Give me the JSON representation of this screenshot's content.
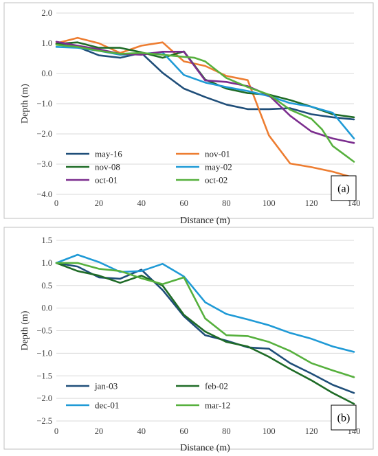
{
  "chart_data": [
    {
      "type": "line",
      "panel_label": "(a)",
      "xlabel": "Distance (m)",
      "ylabel": "Depth (m)",
      "xlim": [
        0,
        140
      ],
      "ylim": [
        -4.0,
        2.0
      ],
      "xticks": [
        0,
        20,
        40,
        60,
        80,
        100,
        120,
        140
      ],
      "yticks": [
        2.0,
        1.0,
        0.0,
        -1.0,
        -2.0,
        -3.0,
        -4.0
      ],
      "ytick_labels": [
        "2.0",
        "1.0",
        "0.0",
        "−1.0",
        "−2.0",
        "−3.0",
        "−4.0"
      ],
      "grid": "horizontal",
      "legend_placement": "bottom-left",
      "series": [
        {
          "name": "may-16",
          "color": "#1f4e79",
          "x": [
            0,
            10,
            20,
            30,
            40,
            50,
            60,
            70,
            80,
            90,
            100,
            110,
            120,
            130,
            140
          ],
          "y": [
            0.98,
            0.88,
            0.6,
            0.52,
            0.68,
            0.02,
            -0.5,
            -0.78,
            -1.03,
            -1.18,
            -1.18,
            -1.15,
            -1.35,
            -1.45,
            -1.52
          ]
        },
        {
          "name": "nov-01",
          "color": "#ed7d31",
          "x": [
            0,
            10,
            20,
            30,
            40,
            50,
            60,
            70,
            80,
            90,
            100,
            110,
            120,
            130,
            140
          ],
          "y": [
            1.0,
            1.18,
            1.0,
            0.68,
            0.92,
            1.03,
            0.4,
            0.25,
            -0.08,
            -0.22,
            -2.05,
            -2.98,
            -3.1,
            -3.25,
            -3.45
          ]
        },
        {
          "name": "nov-08",
          "color": "#1e6b26",
          "x": [
            0,
            10,
            20,
            30,
            40,
            50,
            60,
            70,
            80,
            90,
            100,
            110,
            120,
            130,
            140
          ],
          "y": [
            0.98,
            1.03,
            0.85,
            0.85,
            0.7,
            0.52,
            0.73,
            -0.2,
            -0.5,
            -0.65,
            -0.7,
            -0.88,
            -1.1,
            -1.35,
            -1.45
          ]
        },
        {
          "name": "may-02",
          "color": "#1f9ad6",
          "x": [
            0,
            10,
            20,
            30,
            40,
            50,
            60,
            70,
            80,
            90,
            100,
            110,
            120,
            130,
            140
          ],
          "y": [
            0.88,
            0.85,
            0.75,
            0.62,
            0.65,
            0.7,
            -0.05,
            -0.3,
            -0.45,
            -0.58,
            -0.75,
            -0.98,
            -1.1,
            -1.3,
            -2.15
          ]
        },
        {
          "name": "oct-01",
          "color": "#7b2d8e",
          "x": [
            0,
            10,
            20,
            30,
            40,
            50,
            60,
            70,
            80,
            90,
            100,
            110,
            120,
            130,
            140
          ],
          "y": [
            1.05,
            0.92,
            0.8,
            0.65,
            0.62,
            0.72,
            0.72,
            -0.23,
            -0.28,
            -0.42,
            -0.72,
            -1.4,
            -1.92,
            -2.15,
            -2.3
          ]
        },
        {
          "name": "oct-02",
          "color": "#56b03d",
          "x": [
            0,
            10,
            20,
            30,
            40,
            50,
            60,
            65,
            70,
            80,
            90,
            100,
            110,
            120,
            125,
            130,
            140
          ],
          "y": [
            0.95,
            0.88,
            0.75,
            0.65,
            0.68,
            0.62,
            0.55,
            0.52,
            0.4,
            -0.15,
            -0.45,
            -0.7,
            -1.2,
            -1.5,
            -1.85,
            -2.4,
            -2.92
          ]
        }
      ]
    },
    {
      "type": "line",
      "panel_label": "(b)",
      "xlabel": "Distance (m)",
      "ylabel": "Depth (m)",
      "xlim": [
        0,
        140
      ],
      "ylim": [
        -2.5,
        1.5
      ],
      "xticks": [
        0,
        20,
        40,
        60,
        80,
        100,
        120,
        140
      ],
      "yticks": [
        1.5,
        1.0,
        0.5,
        0.0,
        -0.5,
        -1.0,
        -1.5,
        -2.0,
        -2.5
      ],
      "ytick_labels": [
        "1.5",
        "1.0",
        "0.5",
        "0.0",
        "−0.5",
        "−1.0",
        "−1.5",
        "−2.0",
        "−2.5"
      ],
      "grid": "horizontal",
      "legend_placement": "bottom-left",
      "series": [
        {
          "name": "jan-03",
          "color": "#1f4e79",
          "x": [
            0,
            10,
            20,
            30,
            40,
            50,
            60,
            70,
            80,
            90,
            100,
            110,
            120,
            130,
            140
          ],
          "y": [
            1.0,
            0.92,
            0.68,
            0.65,
            0.85,
            0.4,
            -0.18,
            -0.6,
            -0.72,
            -0.87,
            -0.9,
            -1.22,
            -1.45,
            -1.7,
            -1.88
          ]
        },
        {
          "name": "feb-02",
          "color": "#1e6b26",
          "x": [
            0,
            10,
            20,
            30,
            40,
            50,
            60,
            70,
            80,
            90,
            100,
            110,
            120,
            130,
            140
          ],
          "y": [
            1.0,
            0.82,
            0.72,
            0.56,
            0.72,
            0.5,
            -0.15,
            -0.52,
            -0.75,
            -0.85,
            -1.08,
            -1.35,
            -1.6,
            -1.88,
            -2.12
          ]
        },
        {
          "name": "dec-01",
          "color": "#1f9ad6",
          "x": [
            0,
            10,
            20,
            30,
            40,
            50,
            60,
            70,
            80,
            90,
            100,
            110,
            120,
            130,
            140
          ],
          "y": [
            1.0,
            1.18,
            1.02,
            0.8,
            0.82,
            0.98,
            0.7,
            0.13,
            -0.13,
            -0.25,
            -0.38,
            -0.55,
            -0.68,
            -0.85,
            -0.97
          ]
        },
        {
          "name": "mar-12",
          "color": "#56b03d",
          "x": [
            0,
            10,
            20,
            30,
            40,
            50,
            60,
            70,
            80,
            90,
            100,
            110,
            120,
            130,
            140
          ],
          "y": [
            1.0,
            1.0,
            0.87,
            0.82,
            0.66,
            0.53,
            0.68,
            -0.23,
            -0.6,
            -0.62,
            -0.75,
            -0.95,
            -1.22,
            -1.38,
            -1.53
          ]
        }
      ]
    }
  ]
}
